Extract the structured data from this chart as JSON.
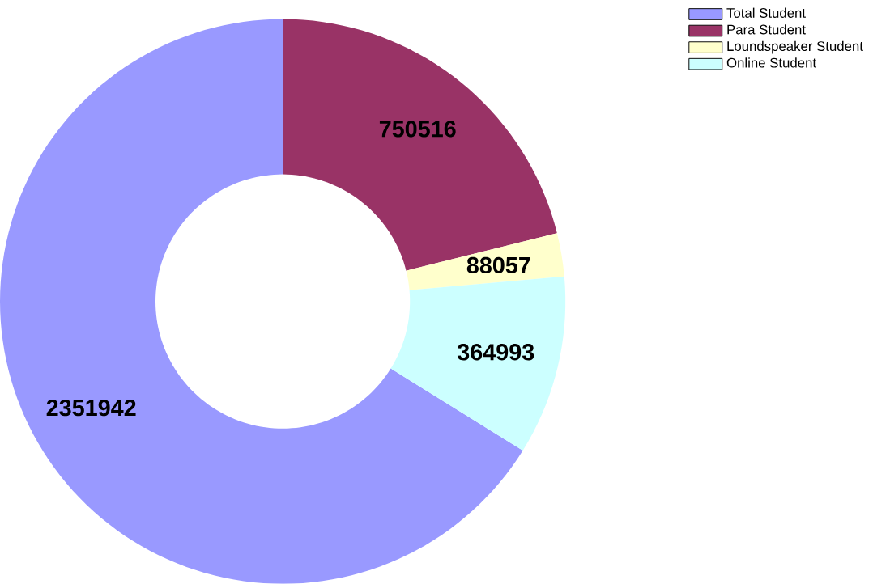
{
  "chart_data": {
    "type": "donut",
    "categories": [
      "Total Student",
      "Para Student",
      "Loundspeaker Student",
      "Online Student"
    ],
    "values": [
      2351942,
      750516,
      88057,
      364993
    ],
    "colors": [
      "#9999ff",
      "#993366",
      "#ffffcc",
      "#ccffff"
    ],
    "data_labels": true,
    "legend": "top right"
  }
}
